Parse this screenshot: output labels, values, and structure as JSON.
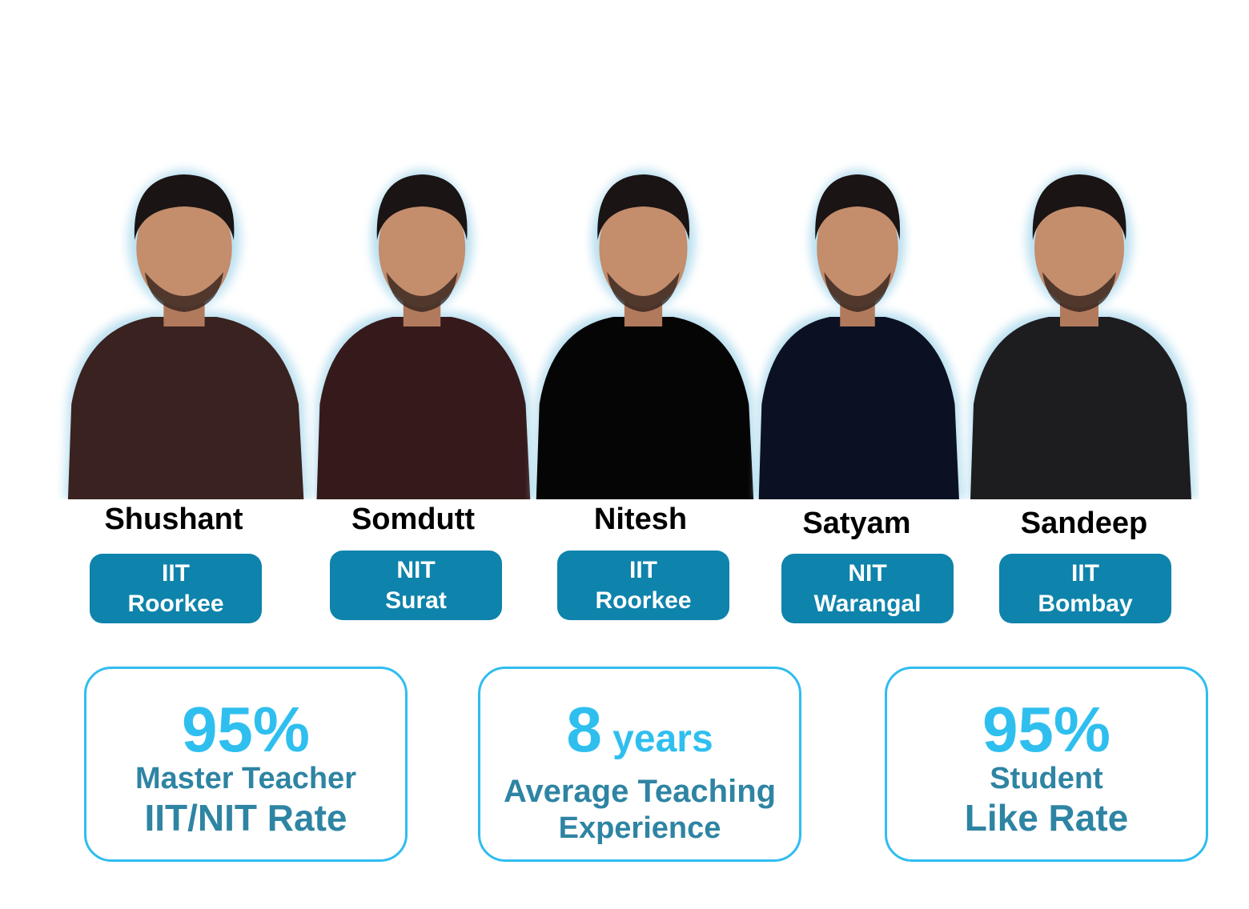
{
  "teachers": [
    {
      "name": "Shushant",
      "institute": "IIT",
      "campus": "Roorkee",
      "shirt": "#3a2220"
    },
    {
      "name": "Somdutt",
      "institute": "NIT",
      "campus": "Surat",
      "shirt": "#361a1b"
    },
    {
      "name": "Nitesh",
      "institute": "IIT",
      "campus": "Roorkee",
      "shirt": "#050505"
    },
    {
      "name": "Satyam",
      "institute": "NIT",
      "campus": "Warangal",
      "shirt": "#0b1122"
    },
    {
      "name": "Sandeep",
      "institute": "IIT",
      "campus": "Bombay",
      "shirt": "#1d1d20"
    }
  ],
  "stats": [
    {
      "value": "95%",
      "unit": "",
      "line1": "Master Teacher",
      "line2": "IIT/NIT Rate"
    },
    {
      "value": "8",
      "unit": " years",
      "line1": "Average Teaching",
      "line2": "Experience"
    },
    {
      "value": "95%",
      "unit": "",
      "line1": "Student",
      "line2": "Like Rate"
    }
  ],
  "colors": {
    "badge": "#0e83ab",
    "accent": "#2fbfef",
    "text": "#2e84a3"
  }
}
